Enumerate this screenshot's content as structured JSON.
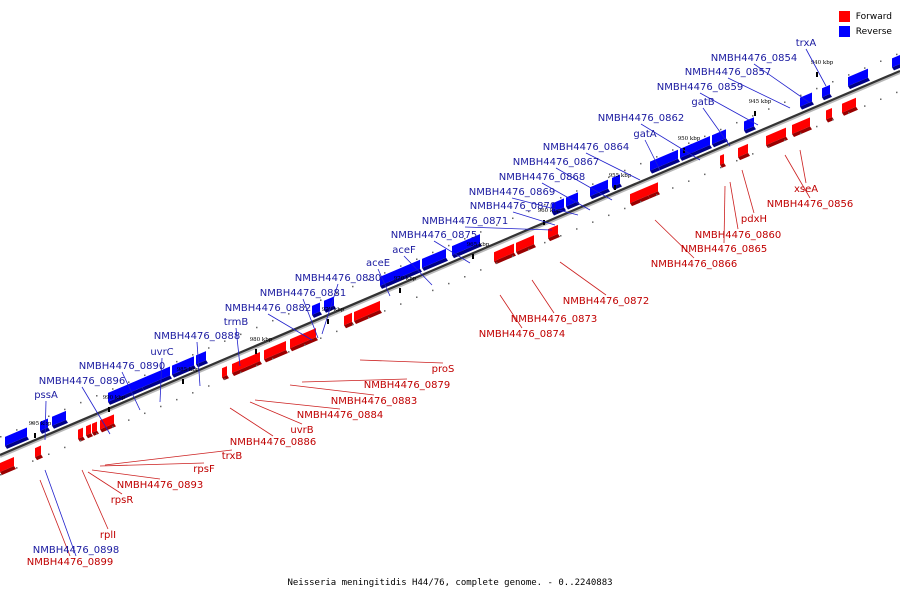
{
  "legend": {
    "forward_label": "Forward",
    "reverse_label": "Reverse",
    "forward_color": "#ff0000",
    "reverse_color": "#0000ff"
  },
  "caption": "Neisseria meningitidis H44/76, complete genome. - 0..2240883",
  "axis_ticks": [
    "940 kbp",
    "945 kbp",
    "950 kbp",
    "955 kbp",
    "960 kbp",
    "965 kbp",
    "970 kbp",
    "975 kbp",
    "980 kbp",
    "985 kbp",
    "990 kbp",
    "995 kbp"
  ],
  "reverse_labels": [
    "trxA",
    "NMBH4476_0854",
    "NMBH4476_0857",
    "NMBH4476_0859",
    "gatB",
    "NMBH4476_0862",
    "gatA",
    "NMBH4476_0864",
    "NMBH4476_0867",
    "NMBH4476_0868",
    "NMBH4476_0869",
    "NMBH4476_0870",
    "NMBH4476_0871",
    "NMBH4476_0875",
    "aceF",
    "aceE",
    "NMBH4476_0880",
    "NMBH4476_0881",
    "NMBH4476_0882",
    "trmB",
    "NMBH4476_0888",
    "uvrC",
    "NMBH4476_0890",
    "NMBH4476_0896",
    "pssA",
    "NMBH4476_0898"
  ],
  "forward_labels": [
    "xseA",
    "NMBH4476_0856",
    "pdxH",
    "NMBH4476_0860",
    "NMBH4476_0865",
    "NMBH4476_0866",
    "NMBH4476_0872",
    "NMBH4476_0873",
    "NMBH4476_0874",
    "proS",
    "NMBH4476_0879",
    "NMBH4476_0883",
    "NMBH4476_0884",
    "uvrB",
    "NMBH4476_0886",
    "trxB",
    "rpsF",
    "NMBH4476_0893",
    "rpsR",
    "rplI",
    "NMBH4476_0899"
  ]
}
